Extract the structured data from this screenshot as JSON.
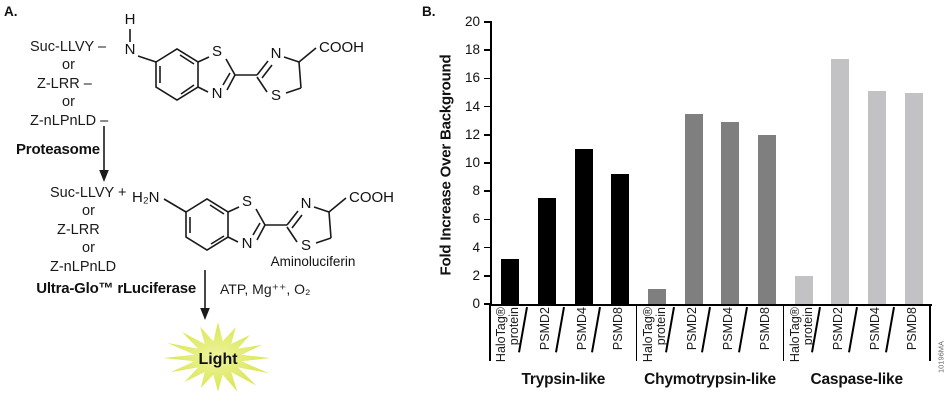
{
  "panel_a": {
    "label": "A.",
    "substrates_top": [
      "Suc-LLVY –",
      "or",
      "Z-LRR –",
      "or",
      "Z-nLPnLD –"
    ],
    "enzyme_step1": "Proteasome",
    "substrates_bottom": [
      "Suc-LLVY +",
      "or",
      "Z-LRR",
      "or",
      "Z-nLPnLD"
    ],
    "enzyme_step2": "Ultra-Glo™ rLuciferase",
    "cofactors": "ATP, Mg⁺⁺, O₂",
    "aminoluciferin_label": "Aminoluciferin",
    "light_label": "Light",
    "light_color_outer": "#d6e43e",
    "light_color_inner": "#eef3a2",
    "atoms": {
      "h": "H",
      "n": "N",
      "s": "S",
      "cooh": "COOH",
      "h2n": "H₂N"
    }
  },
  "panel_b": {
    "label": "B."
  },
  "chart_data": {
    "type": "bar",
    "title": "",
    "xlabel": "",
    "ylabel": "Fold Increase Over Background",
    "ylim": [
      0,
      20
    ],
    "ytick_step": 2,
    "grid": false,
    "legend": "none",
    "watermark": "10196MA",
    "groups": [
      {
        "label": "Trypsin-like",
        "color": "#000000",
        "bars": [
          {
            "label": "HaloTag®\nprotein",
            "value": 3.2
          },
          {
            "label": "PSMD2",
            "value": 7.5
          },
          {
            "label": "PSMD4",
            "value": 11.0
          },
          {
            "label": "PSMD8",
            "value": 9.2
          }
        ]
      },
      {
        "label": "Chymotrypsin-like",
        "color": "#7f7f7f",
        "bars": [
          {
            "label": "HaloTag®\nprotein",
            "value": 1.1
          },
          {
            "label": "PSMD2",
            "value": 13.5
          },
          {
            "label": "PSMD4",
            "value": 12.9
          },
          {
            "label": "PSMD8",
            "value": 12.0
          }
        ]
      },
      {
        "label": "Caspase-like",
        "color": "#c2c1c3",
        "bars": [
          {
            "label": "HaloTag®\nprotein",
            "value": 2.0
          },
          {
            "label": "PSMD2",
            "value": 17.4
          },
          {
            "label": "PSMD4",
            "value": 15.1
          },
          {
            "label": "PSMD8",
            "value": 15.0
          }
        ]
      }
    ]
  }
}
